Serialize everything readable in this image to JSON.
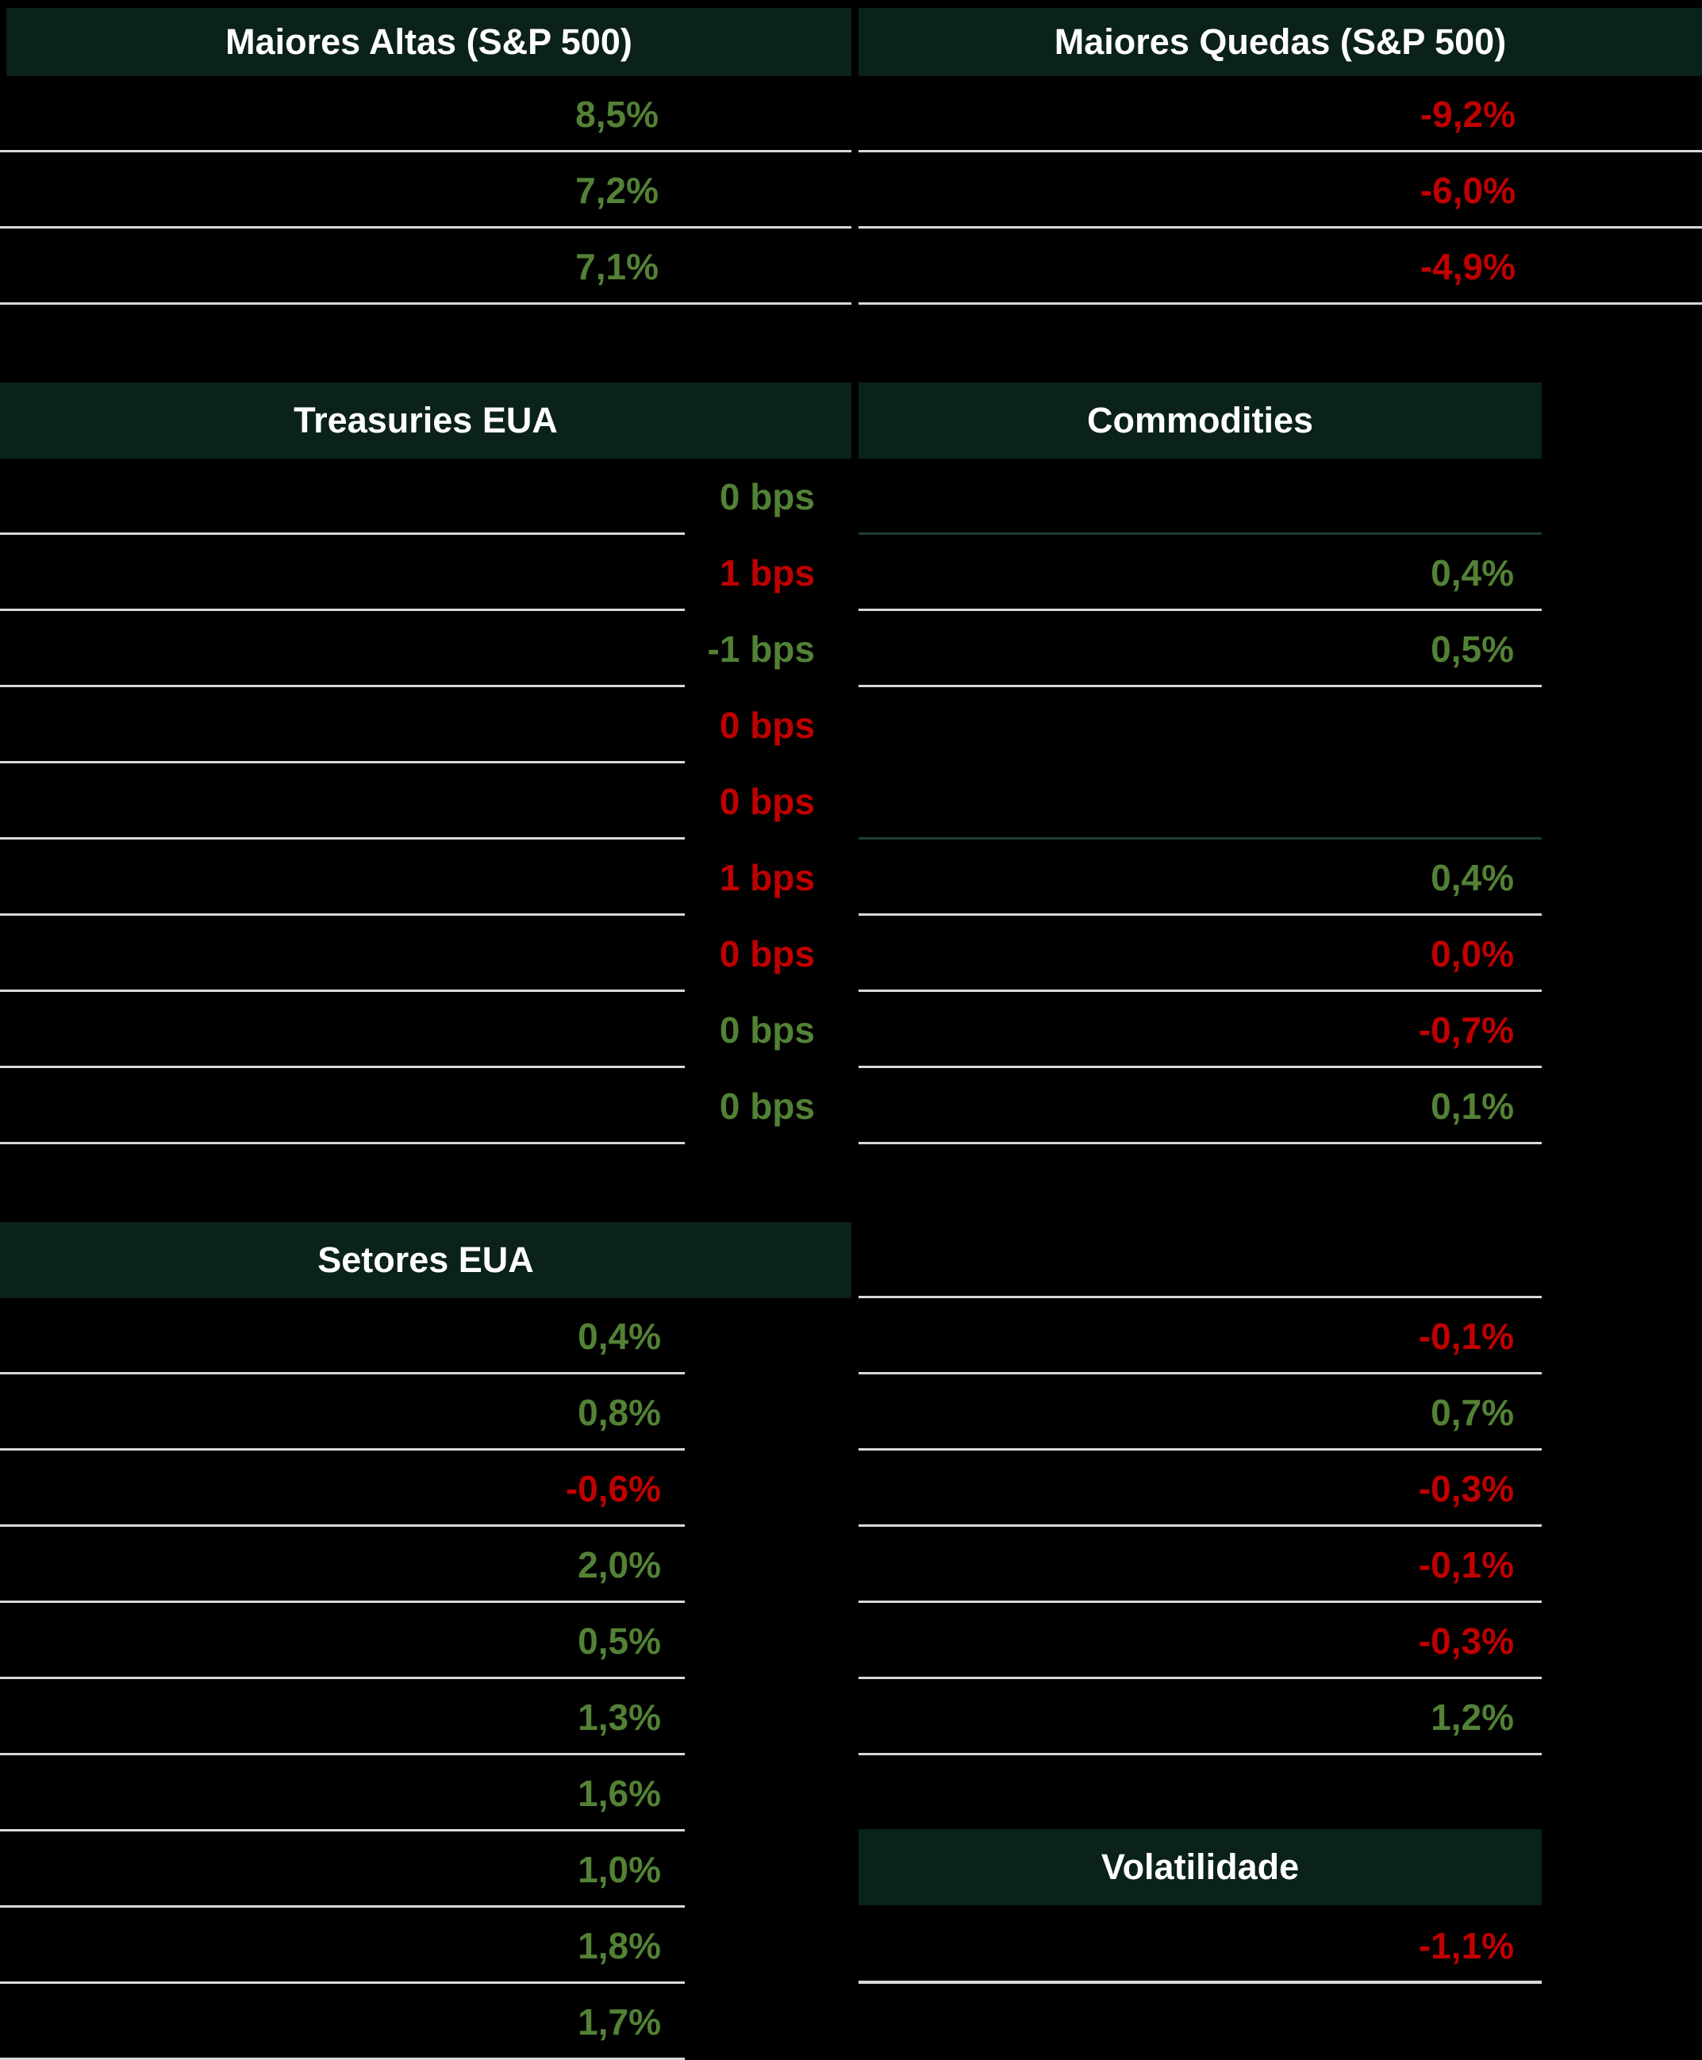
{
  "palette": {
    "background": "#000000",
    "header_bg": "#0B211B",
    "header_text": "#FFFFFF",
    "positive_green": "#538135",
    "negative_red": "#C00000",
    "divider_light": "#D9D9D9",
    "divider_dark": "#1E3B35"
  },
  "chart_data": [
    {
      "type": "table",
      "title": "Maiores Altas (S&P 500)",
      "rows": [
        {
          "value": "8,5%",
          "color": "green"
        },
        {
          "value": "7,2%",
          "color": "green"
        },
        {
          "value": "7,1%",
          "color": "green"
        }
      ]
    },
    {
      "type": "table",
      "title": "Maiores Quedas (S&P 500)",
      "rows": [
        {
          "value": "-9,2%",
          "color": "red"
        },
        {
          "value": "-6,0%",
          "color": "red"
        },
        {
          "value": "-4,9%",
          "color": "red"
        }
      ]
    },
    {
      "type": "table",
      "title": "Treasuries EUA",
      "unit": "bps",
      "rows": [
        {
          "value": "0 bps",
          "color": "green"
        },
        {
          "value": "1 bps",
          "color": "red"
        },
        {
          "value": "-1 bps",
          "color": "green"
        },
        {
          "value": "0 bps",
          "color": "red"
        },
        {
          "value": "0 bps",
          "color": "red"
        },
        {
          "value": "1 bps",
          "color": "red"
        },
        {
          "value": "0 bps",
          "color": "red"
        },
        {
          "value": "0 bps",
          "color": "green"
        },
        {
          "value": "0 bps",
          "color": "green"
        }
      ]
    },
    {
      "type": "table",
      "title": "Commodities",
      "rows": [
        {
          "value": "",
          "divider": "dark"
        },
        {
          "value": "0,4%",
          "color": "green"
        },
        {
          "value": "0,5%",
          "color": "green"
        },
        {
          "value": "",
          "divider": "none"
        },
        {
          "value": "",
          "divider": "dark"
        },
        {
          "value": "0,4%",
          "color": "green"
        },
        {
          "value": "0,0%",
          "color": "red"
        },
        {
          "value": "-0,7%",
          "color": "red"
        },
        {
          "value": "0,1%",
          "color": "green"
        }
      ]
    },
    {
      "type": "table",
      "title": "Setores EUA",
      "rows": [
        {
          "value": "0,4%",
          "color": "green"
        },
        {
          "value": "0,8%",
          "color": "green"
        },
        {
          "value": "-0,6%",
          "color": "red"
        },
        {
          "value": "2,0%",
          "color": "green"
        },
        {
          "value": "0,5%",
          "color": "green"
        },
        {
          "value": "1,3%",
          "color": "green"
        },
        {
          "value": "1,6%",
          "color": "green"
        },
        {
          "value": "1,0%",
          "color": "green"
        },
        {
          "value": "1,8%",
          "color": "green"
        },
        {
          "value": "1,7%",
          "color": "green"
        }
      ]
    },
    {
      "type": "table",
      "title": "",
      "rows": [
        {
          "value": ""
        },
        {
          "value": "-0,1%",
          "color": "red"
        },
        {
          "value": "0,7%",
          "color": "green"
        },
        {
          "value": "-0,3%",
          "color": "red"
        },
        {
          "value": "-0,1%",
          "color": "red"
        },
        {
          "value": "-0,3%",
          "color": "red"
        },
        {
          "value": "1,2%",
          "color": "green"
        }
      ]
    },
    {
      "type": "table",
      "title": "Volatilidade",
      "rows": [
        {
          "value": "-1,1%",
          "color": "red"
        }
      ]
    }
  ]
}
